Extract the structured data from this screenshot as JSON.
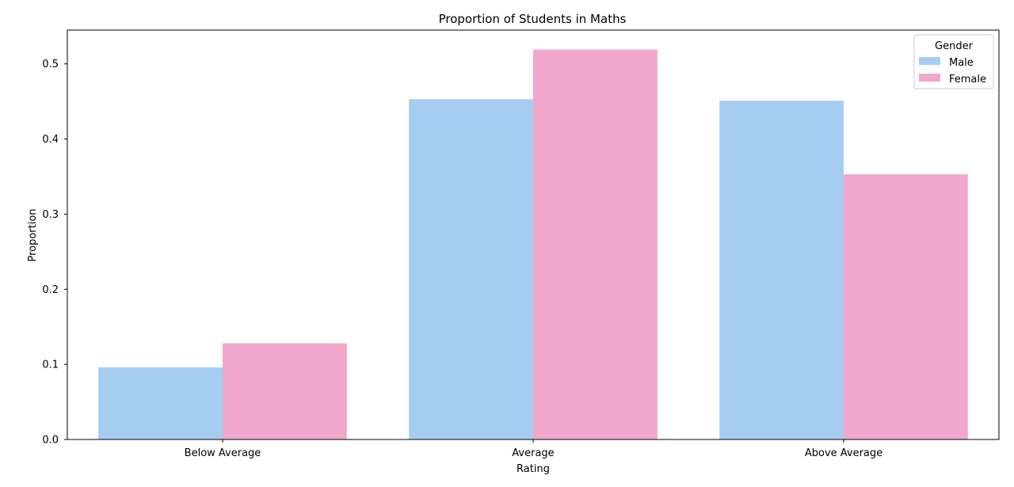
{
  "chart_data": {
    "type": "bar",
    "title": "Proportion of Students in Maths",
    "xlabel": "Rating",
    "ylabel": "Proportion",
    "categories": [
      "Below Average",
      "Average",
      "Above Average"
    ],
    "series": [
      {
        "name": "Male",
        "color": "#a7ccf1",
        "values": [
          0.096,
          0.453,
          0.451
        ]
      },
      {
        "name": "Female",
        "color": "#f1a7cc",
        "values": [
          0.128,
          0.519,
          0.353
        ]
      }
    ],
    "ylim": [
      0,
      0.545
    ],
    "yticks": [
      0.0,
      0.1,
      0.2,
      0.3,
      0.4,
      0.5
    ],
    "ytick_labels": [
      "0.0",
      "0.1",
      "0.2",
      "0.3",
      "0.4",
      "0.5"
    ],
    "grid": false,
    "legend": {
      "title": "Gender",
      "position": "top-right"
    }
  }
}
